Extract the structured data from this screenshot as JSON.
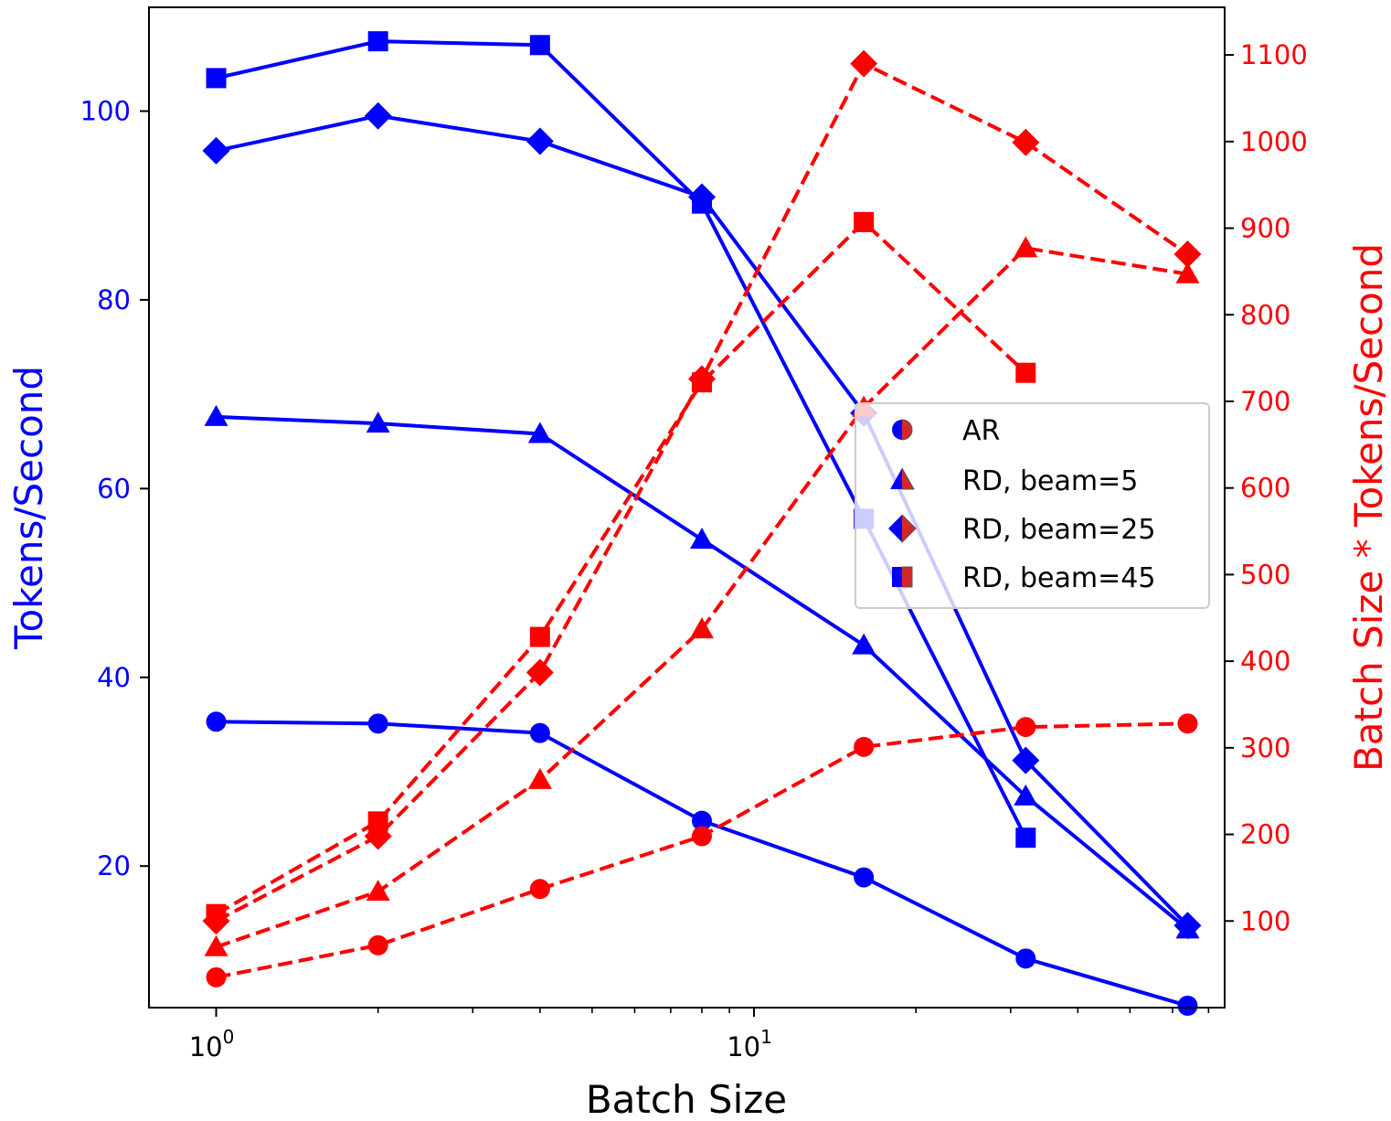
{
  "chart_data": {
    "type": "line",
    "xscale": "log",
    "x": [
      1,
      2,
      4,
      8,
      16,
      32,
      64
    ],
    "xlabel": "Batch Size",
    "xticks": [
      {
        "value": 1,
        "base": "10",
        "exp": "0"
      },
      {
        "value": 10,
        "base": "10",
        "exp": "1"
      }
    ],
    "xlim": [
      0.75,
      75
    ],
    "ylabel": "Tokens/Second",
    "ylim": [
      5,
      111
    ],
    "yticks": [
      "20",
      "40",
      "60",
      "80",
      "100"
    ],
    "y2label": "Batch Size * Tokens/Second",
    "y2lim": [
      0,
      1155
    ],
    "y2ticks": [
      "100",
      "200",
      "300",
      "400",
      "500",
      "600",
      "700",
      "800",
      "900",
      "1000",
      "1100"
    ],
    "colors": {
      "left": "#0000ff",
      "right": "#ff0000"
    },
    "series": [
      {
        "name": "AR",
        "marker": "circle",
        "left": [
          35.3,
          35.1,
          34.1,
          24.8,
          18.8,
          10.2,
          5.2
        ],
        "right": [
          35,
          72,
          137,
          198,
          301,
          324,
          328
        ]
      },
      {
        "name": "RD, beam=5",
        "marker": "triangle",
        "left": [
          67.6,
          66.9,
          65.8,
          54.6,
          43.4,
          27.4,
          13.3
        ],
        "right": [
          70,
          134,
          263,
          437,
          693,
          877,
          847
        ]
      },
      {
        "name": "RD, beam=25",
        "marker": "diamond",
        "left": [
          95.8,
          99.5,
          96.8,
          90.9,
          68.0,
          31.2,
          13.7
        ],
        "right": [
          100,
          198,
          387,
          726,
          1090,
          999,
          870
        ]
      },
      {
        "name": "RD, beam=45",
        "marker": "square",
        "left": [
          103.5,
          107.4,
          107.0,
          90.2,
          56.8,
          23.0
        ],
        "right": [
          108,
          215,
          428,
          722,
          907,
          733
        ]
      }
    ],
    "legend": {
      "position": "center-right",
      "entries": [
        "AR",
        "RD, beam=5",
        "RD, beam=25",
        "RD, beam=45"
      ]
    }
  }
}
